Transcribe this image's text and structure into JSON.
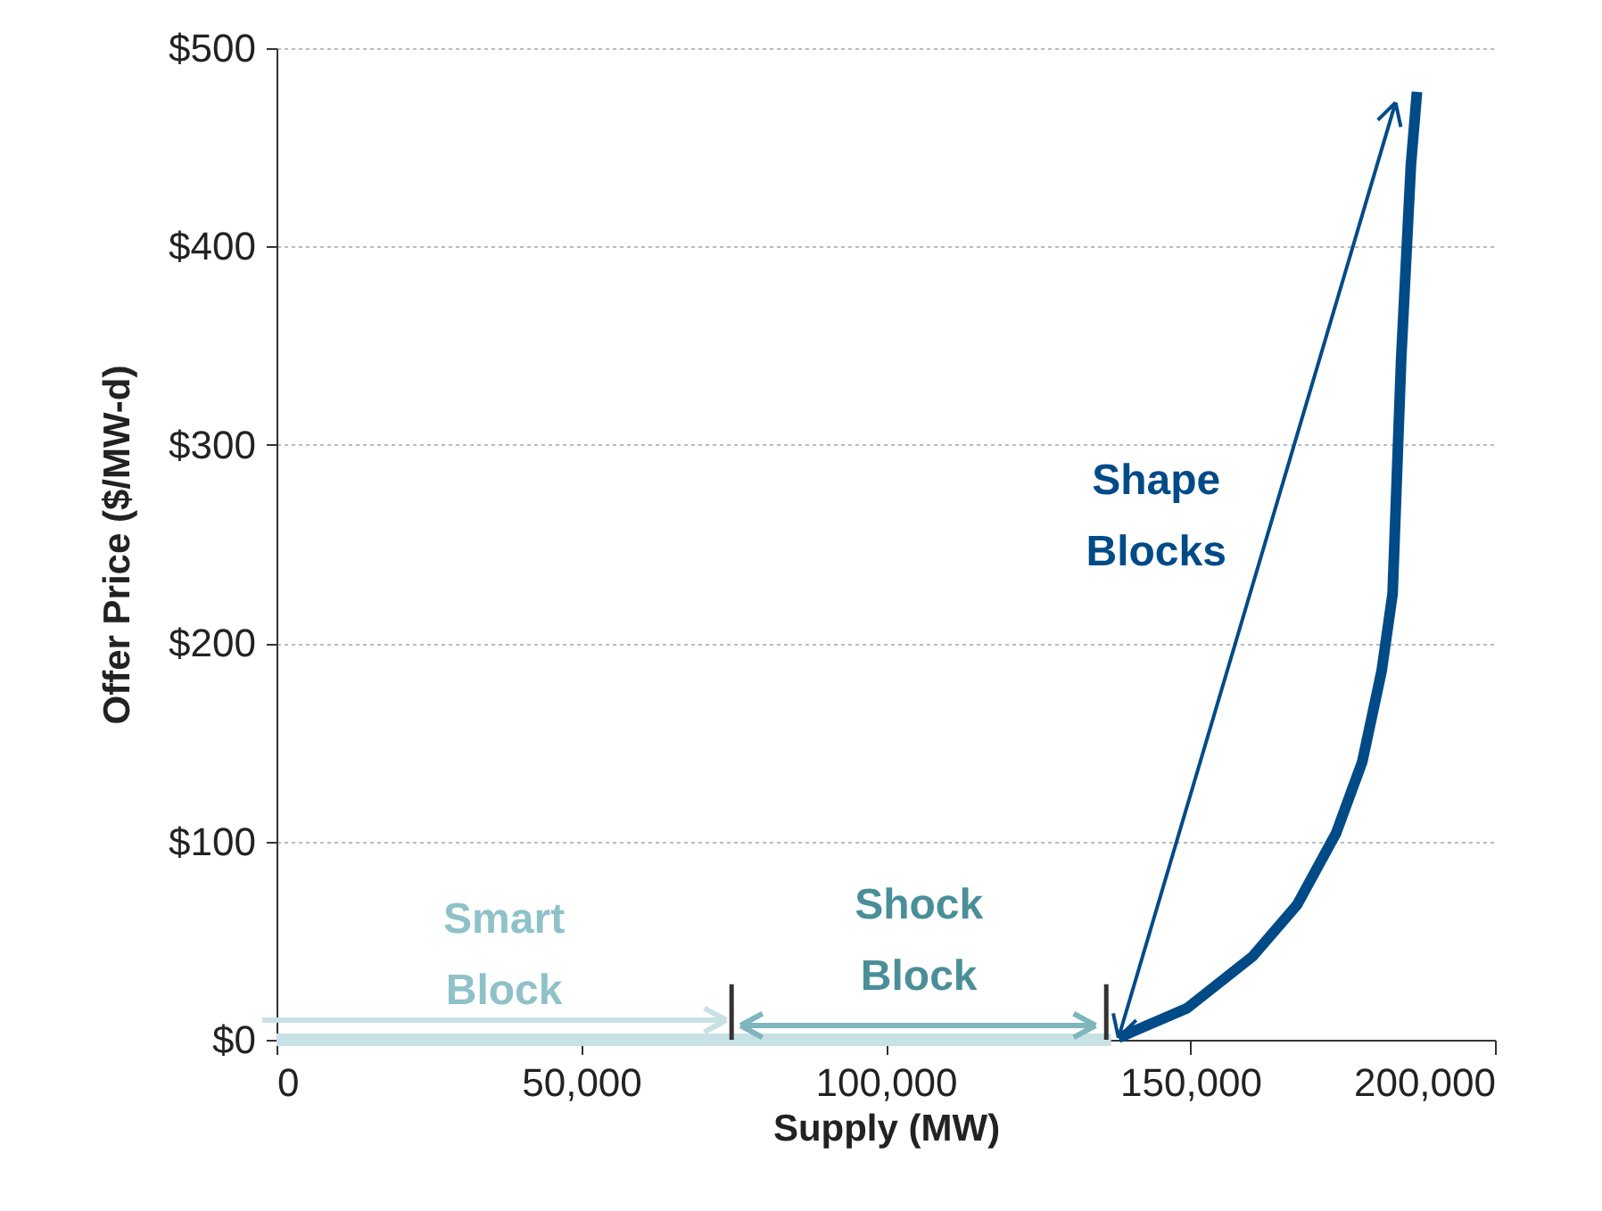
{
  "chart_data": {
    "type": "line",
    "xlabel": "Supply (MW)",
    "ylabel": "Offer Price  ($/MW-d)",
    "series": [
      {
        "color": "#c8e1e5",
        "x": [
          0,
          137000
        ],
        "values": [
          0,
          0
        ]
      },
      {
        "color": "#004b87",
        "x": [
          138200,
          149500,
          160200,
          167500,
          173900,
          178200,
          181400,
          183200,
          184600,
          186200,
          187200
        ],
        "values": [
          1,
          16,
          42,
          68,
          104,
          140,
          186,
          225,
          343,
          441,
          478
        ]
      },
      {
        "color": "#333333",
        "x": [
          74700,
          74700
        ],
        "values": [
          0,
          28
        ]
      },
      {
        "color": "#333333",
        "x": [
          136200,
          136200
        ],
        "values": [
          0,
          28
        ]
      }
    ],
    "xlim": [
      0,
      200000
    ],
    "xticks": [
      {
        "value": 0,
        "label": "0"
      },
      {
        "value": 50000,
        "label": "50,000"
      },
      {
        "value": 100000,
        "label": "100,000"
      },
      {
        "value": 150000,
        "label": "150,000"
      },
      {
        "value": 200000,
        "label": "200,000"
      }
    ],
    "ylim": [
      0,
      500
    ],
    "yticks": [
      {
        "value": 0,
        "label": "$0"
      },
      {
        "value": 100,
        "label": "$100"
      },
      {
        "value": 200,
        "label": "$200"
      },
      {
        "value": 300,
        "label": "$300"
      },
      {
        "value": 400,
        "label": "$400"
      },
      {
        "value": 500,
        "label": "$500"
      }
    ],
    "grid": "y",
    "annotations": [
      "Smart Block",
      "Shock Block",
      "Shape Blocks"
    ]
  }
}
